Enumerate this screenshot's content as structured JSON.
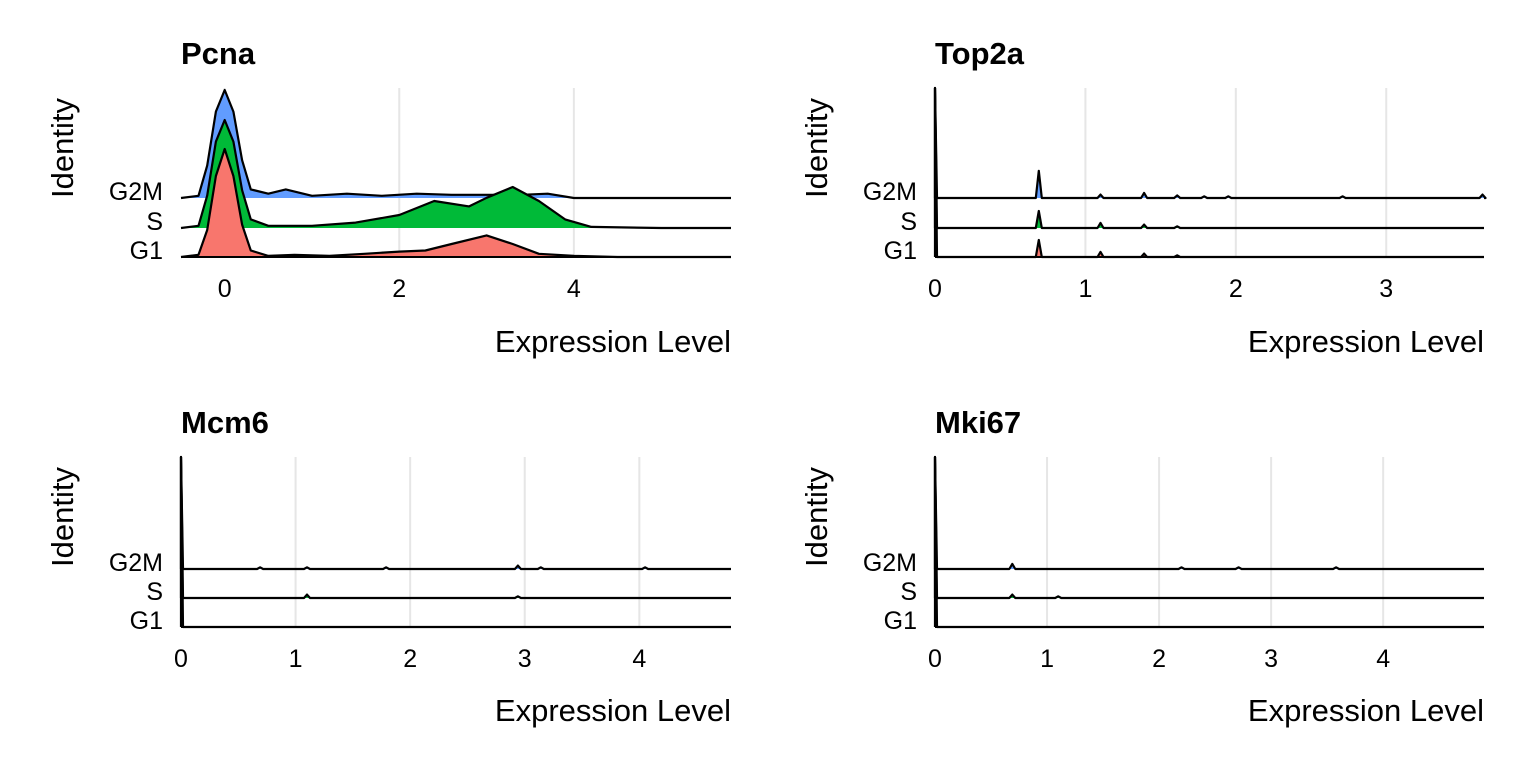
{
  "chart_data": [
    {
      "type": "area",
      "title": "Pcna",
      "xlabel": "Expression Level",
      "ylabel": "Identity",
      "xlim": [
        -0.5,
        5.8
      ],
      "xticks": [
        0,
        2,
        4
      ],
      "grid": true,
      "categories": [
        "G1",
        "S",
        "G2M"
      ],
      "series": [
        {
          "name": "G1",
          "color": "#F8766D",
          "x": [
            -0.5,
            -0.3,
            -0.2,
            -0.1,
            0,
            0.1,
            0.2,
            0.3,
            0.5,
            0.8,
            1.2,
            1.6,
            2.0,
            2.3,
            2.6,
            3.0,
            3.3,
            3.6,
            4.0,
            4.5,
            5.0,
            5.8
          ],
          "y": [
            0,
            0.02,
            0.25,
            0.75,
            1.0,
            0.75,
            0.3,
            0.06,
            0.01,
            0.02,
            0.01,
            0.03,
            0.05,
            0.06,
            0.12,
            0.2,
            0.12,
            0.03,
            0.01,
            0,
            0,
            0
          ]
        },
        {
          "name": "S",
          "color": "#00BA38",
          "x": [
            -0.5,
            -0.3,
            -0.2,
            -0.1,
            0,
            0.1,
            0.2,
            0.3,
            0.5,
            1.0,
            1.5,
            2.0,
            2.4,
            2.8,
            3.0,
            3.3,
            3.6,
            3.9,
            4.2,
            5.0,
            5.8
          ],
          "y": [
            0,
            0.02,
            0.3,
            0.8,
            1.0,
            0.8,
            0.35,
            0.08,
            0.02,
            0.02,
            0.05,
            0.12,
            0.25,
            0.2,
            0.28,
            0.38,
            0.25,
            0.08,
            0.01,
            0,
            0
          ]
        },
        {
          "name": "G2M",
          "color": "#619CFF",
          "x": [
            -0.5,
            -0.3,
            -0.2,
            -0.1,
            0,
            0.1,
            0.2,
            0.3,
            0.5,
            0.7,
            1.0,
            1.4,
            1.8,
            2.2,
            2.6,
            3.0,
            3.4,
            3.7,
            4.0,
            5.8
          ],
          "y": [
            0,
            0.02,
            0.3,
            0.8,
            1.0,
            0.8,
            0.35,
            0.08,
            0.04,
            0.08,
            0.02,
            0.04,
            0.02,
            0.04,
            0.03,
            0.03,
            0.03,
            0.04,
            0,
            0
          ]
        }
      ]
    },
    {
      "type": "area",
      "title": "Top2a",
      "xlabel": "Expression Level",
      "ylabel": "Identity",
      "xlim": [
        0,
        3.65
      ],
      "xticks": [
        0,
        1,
        2,
        3
      ],
      "grid": true,
      "categories": [
        "G1",
        "S",
        "G2M"
      ],
      "series": [
        {
          "name": "G1",
          "color": "#F8766D",
          "spikes": [
            [
              0,
              2.7
            ],
            [
              0.69,
              0.1
            ],
            [
              1.1,
              0.03
            ],
            [
              1.39,
              0.02
            ],
            [
              1.61,
              0.01
            ]
          ]
        },
        {
          "name": "S",
          "color": "#00BA38",
          "spikes": [
            [
              0,
              2.2
            ],
            [
              0.69,
              0.1
            ],
            [
              1.1,
              0.03
            ],
            [
              1.39,
              0.02
            ],
            [
              1.61,
              0.01
            ]
          ]
        },
        {
          "name": "G2M",
          "color": "#619CFF",
          "spikes": [
            [
              0,
              1.6
            ],
            [
              0.69,
              0.16
            ],
            [
              1.1,
              0.02
            ],
            [
              1.39,
              0.03
            ],
            [
              1.61,
              0.015
            ],
            [
              1.79,
              0.01
            ],
            [
              1.95,
              0.01
            ],
            [
              2.71,
              0.01
            ],
            [
              3.64,
              0.02
            ]
          ]
        }
      ]
    },
    {
      "type": "area",
      "title": "Mcm6",
      "xlabel": "Expression Level",
      "ylabel": "Identity",
      "xlim": [
        0,
        4.8
      ],
      "xticks": [
        0,
        1,
        2,
        3,
        4
      ],
      "grid": true,
      "categories": [
        "G1",
        "S",
        "G2M"
      ],
      "series": [
        {
          "name": "G1",
          "color": "#F8766D",
          "spikes": [
            [
              0,
              3.0
            ]
          ]
        },
        {
          "name": "S",
          "color": "#00BA38",
          "spikes": [
            [
              0,
              2.5
            ],
            [
              1.1,
              0.02
            ],
            [
              2.94,
              0.01
            ]
          ]
        },
        {
          "name": "G2M",
          "color": "#619CFF",
          "spikes": [
            [
              0,
              1.9
            ],
            [
              0.69,
              0.01
            ],
            [
              1.1,
              0.01
            ],
            [
              1.79,
              0.01
            ],
            [
              2.94,
              0.02
            ],
            [
              3.14,
              0.01
            ],
            [
              4.05,
              0.01
            ]
          ]
        }
      ]
    },
    {
      "type": "area",
      "title": "Mki67",
      "xlabel": "Expression Level",
      "ylabel": "Identity",
      "xlim": [
        0,
        4.9
      ],
      "xticks": [
        0,
        1,
        2,
        3,
        4
      ],
      "grid": true,
      "categories": [
        "G1",
        "S",
        "G2M"
      ],
      "series": [
        {
          "name": "G1",
          "color": "#F8766D",
          "spikes": [
            [
              0,
              3.0
            ]
          ]
        },
        {
          "name": "S",
          "color": "#00BA38",
          "spikes": [
            [
              0,
              2.5
            ],
            [
              0.69,
              0.02
            ],
            [
              1.1,
              0.01
            ]
          ]
        },
        {
          "name": "G2M",
          "color": "#619CFF",
          "spikes": [
            [
              0,
              1.9
            ],
            [
              0.69,
              0.03
            ],
            [
              2.2,
              0.01
            ],
            [
              2.71,
              0.01
            ],
            [
              3.58,
              0.01
            ]
          ]
        }
      ]
    }
  ]
}
